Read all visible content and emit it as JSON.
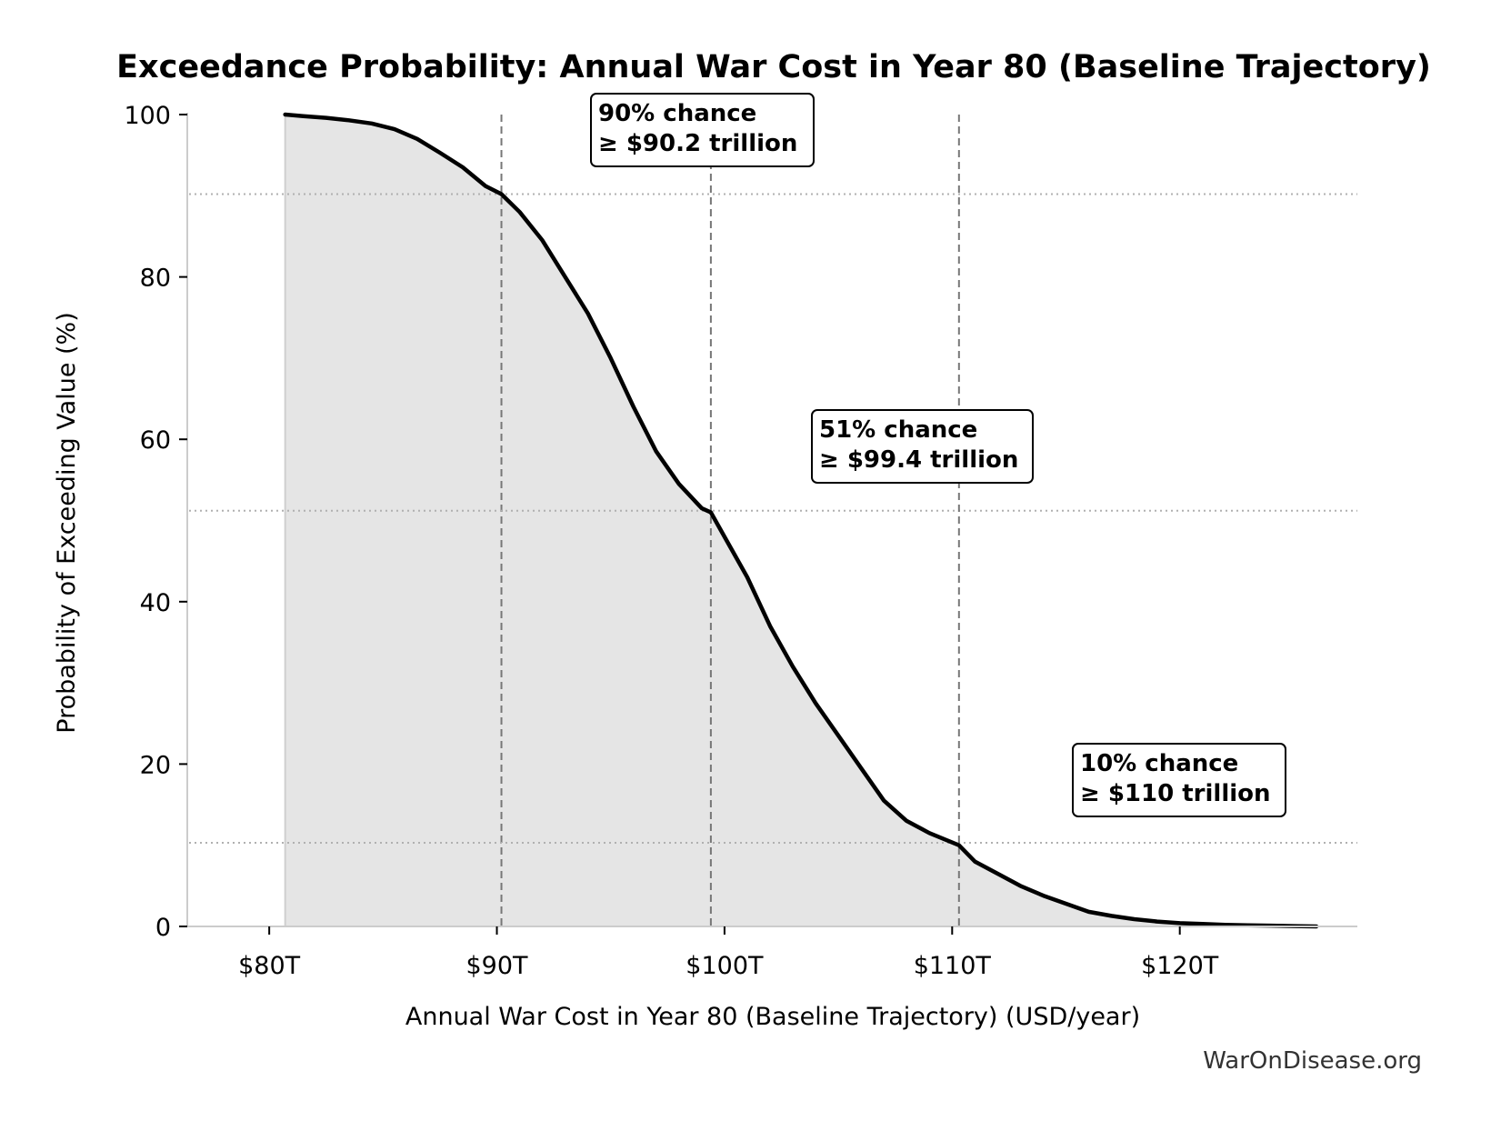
{
  "chart_data": {
    "type": "line",
    "title": "Exceedance Probability: Annual War Cost in Year 80 (Baseline Trajectory)",
    "xlabel": "Annual War Cost in Year 80 (Baseline Trajectory) (USD/year)",
    "ylabel": "Probability of Exceeding Value (%)",
    "x_unit": "trillion USD/year",
    "xlim": [
      76.4,
      127.8
    ],
    "ylim": [
      0,
      100
    ],
    "x_ticks": [
      80,
      90,
      100,
      110,
      120
    ],
    "x_tick_labels": [
      "$80T",
      "$90T",
      "$100T",
      "$110T",
      "$120T"
    ],
    "y_ticks": [
      0,
      20,
      40,
      60,
      80,
      100
    ],
    "y_tick_labels": [
      "0",
      "20",
      "40",
      "60",
      "80",
      "100"
    ],
    "fill_under_curve": true,
    "grid": "off",
    "series": [
      {
        "x": [
          80.7,
          81.5,
          82.5,
          83.5,
          84.5,
          85.5,
          86.5,
          87.5,
          88.5,
          89.5,
          90.2,
          91.0,
          92.0,
          93.0,
          94.0,
          95.0,
          96.0,
          97.0,
          98.0,
          99.0,
          99.4,
          100.0,
          101.0,
          102.0,
          103.0,
          104.0,
          105.0,
          106.0,
          107.0,
          108.0,
          109.0,
          110.3,
          111.0,
          112.0,
          113.0,
          114.0,
          115.0,
          116.0,
          117.0,
          118.0,
          119.0,
          120.0,
          121.0,
          122.0,
          123.0,
          124.0,
          125.0,
          126.0
        ],
        "y": [
          100,
          99.8,
          99.6,
          99.3,
          98.9,
          98.2,
          97.0,
          95.3,
          93.5,
          91.2,
          90.2,
          88.0,
          84.5,
          80.0,
          75.5,
          70.0,
          64.0,
          58.5,
          54.5,
          51.5,
          51.0,
          48.0,
          43.0,
          37.0,
          32.0,
          27.5,
          23.5,
          19.5,
          15.5,
          13.0,
          11.5,
          10.0,
          8.0,
          6.5,
          5.0,
          3.8,
          2.8,
          1.8,
          1.3,
          0.9,
          0.6,
          0.4,
          0.3,
          0.2,
          0.15,
          0.1,
          0.05,
          0.0
        ]
      }
    ],
    "annotations": [
      {
        "x": 90.2,
        "y": 90.2,
        "line1": "90% chance",
        "line2": "≥ $90.2 trillion"
      },
      {
        "x": 99.4,
        "y": 51.2,
        "line1": "51% chance",
        "line2": "≥ $99.4 trillion"
      },
      {
        "x": 110.3,
        "y": 10.3,
        "line1": "10% chance",
        "line2": "≥ $110 trillion"
      }
    ]
  },
  "watermark": "WarOnDisease.org",
  "colors": {
    "curve": "#000000",
    "fill": "#e5e5e5",
    "reference_line": "#777777",
    "axis": "#cccccc"
  }
}
